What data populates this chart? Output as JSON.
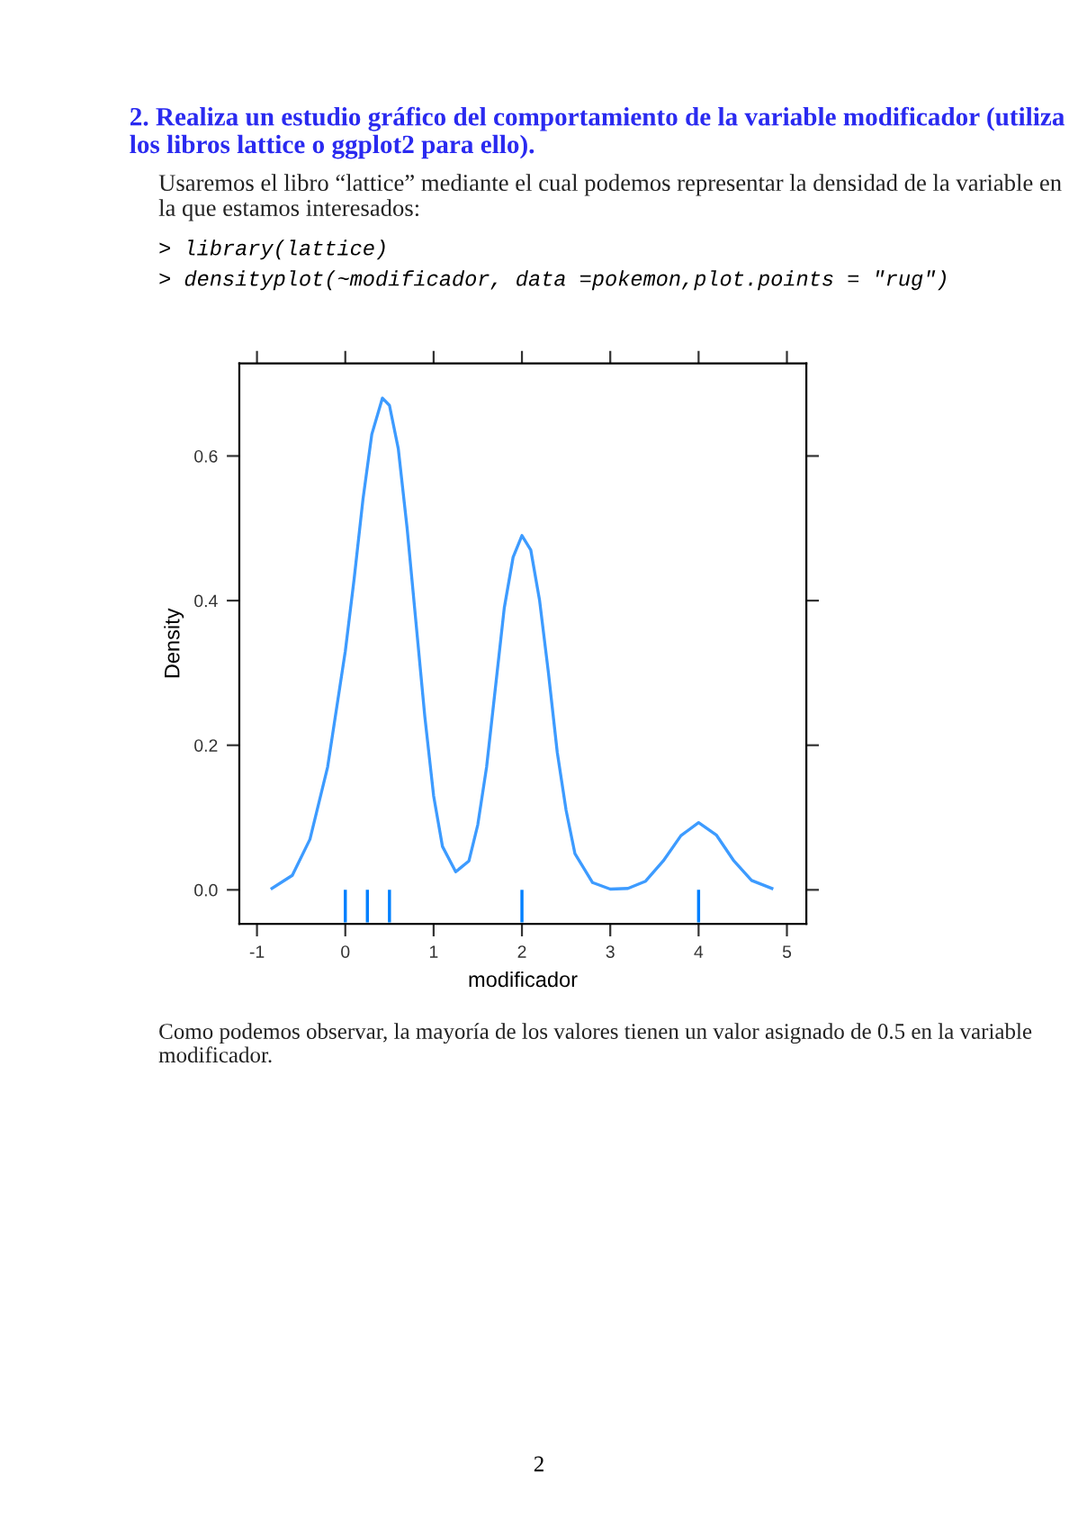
{
  "chart_data": {
    "type": "line",
    "title": "2. Realiza un estudio gráfico del comportamiento de la variable modificador (utiliza los libros lattice o ggplot2 para ello).",
    "subtitle": "Usaremos el libro “lattice” mediante el cual podemos representar la densidad de la variable en la que estamos interesados:",
    "annotations": [
      "> library(lattice)",
      "> densityplot(~modificador, data =pokemon,plot.points = \"rug\")",
      "Como podemos observar, la mayoría de los valores tienen un valor asignado de 0.5 en la variable modificador.",
      "2"
    ],
    "xlabel": "modificador",
    "ylabel": "Density",
    "series": [
      {
        "color": "#3d9bff",
        "x": [
          -0.83,
          -0.6,
          -0.4,
          -0.2,
          0.0,
          0.1,
          0.2,
          0.3,
          0.42,
          0.5,
          0.6,
          0.7,
          0.8,
          0.9,
          1.0,
          1.1,
          1.25,
          1.4,
          1.5,
          1.6,
          1.7,
          1.8,
          1.9,
          2.0,
          2.1,
          2.2,
          2.3,
          2.4,
          2.5,
          2.6,
          2.8,
          3.0,
          3.2,
          3.4,
          3.6,
          3.8,
          4.0,
          4.2,
          4.4,
          4.6,
          4.83
        ],
        "values": [
          0.002,
          0.02,
          0.07,
          0.17,
          0.33,
          0.43,
          0.54,
          0.63,
          0.68,
          0.67,
          0.61,
          0.5,
          0.37,
          0.24,
          0.13,
          0.06,
          0.025,
          0.04,
          0.09,
          0.17,
          0.28,
          0.39,
          0.46,
          0.49,
          0.47,
          0.4,
          0.3,
          0.19,
          0.11,
          0.05,
          0.01,
          0.001,
          0.002,
          0.012,
          0.04,
          0.075,
          0.093,
          0.076,
          0.04,
          0.013,
          0.002
        ]
      },
      {
        "type": "bar",
        "color": "#0080ff",
        "x": [
          0,
          0.25,
          0.5,
          2,
          4
        ],
        "values": [
          0.045,
          0.045,
          0.045,
          0.045,
          0.045
        ],
        "base": [
          -0.045,
          -0.045,
          -0.045,
          -0.045,
          -0.045
        ]
      }
    ],
    "xlim": [
      -1.2,
      5.22
    ],
    "ylim": [
      -0.047,
      0.728
    ],
    "xticks": [
      -1,
      0,
      1,
      2,
      3,
      4,
      5
    ],
    "yticks": [
      {
        "value": 0,
        "label": "0.0"
      },
      0.2,
      0.4,
      0.6
    ],
    "grid": false
  }
}
